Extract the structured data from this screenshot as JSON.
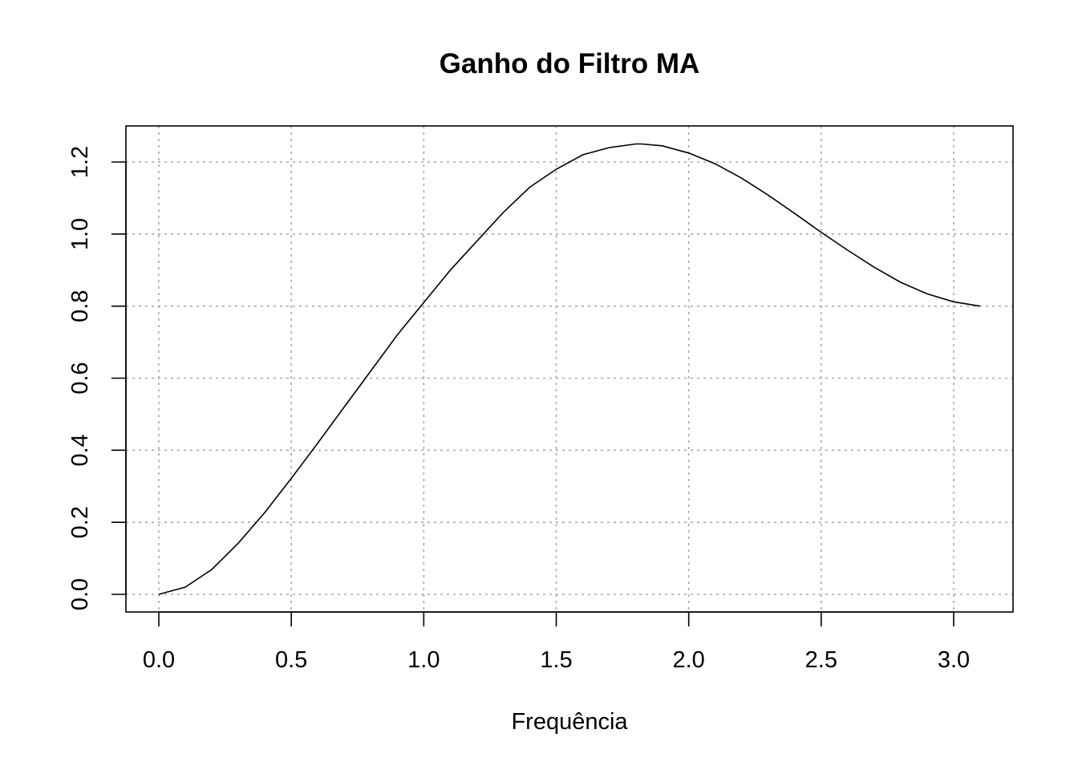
{
  "chart_data": {
    "type": "line",
    "title": "Ganho do Filtro MA",
    "xlabel": "Frequência",
    "ylabel": "",
    "xlim": [
      0.0,
      3.1
    ],
    "ylim": [
      0.0,
      1.25
    ],
    "x_ticks": [
      0.0,
      0.5,
      1.0,
      1.5,
      2.0,
      2.5,
      3.0
    ],
    "x_tick_labels": [
      "0.0",
      "0.5",
      "1.0",
      "1.5",
      "2.0",
      "2.5",
      "3.0"
    ],
    "y_ticks": [
      0.0,
      0.2,
      0.4,
      0.6,
      0.8,
      1.0,
      1.2
    ],
    "y_tick_labels": [
      "0.0",
      "0.2",
      "0.4",
      "0.6",
      "0.8",
      "1.0",
      "1.2"
    ],
    "grid": true,
    "line_color": "#000000",
    "grid_color": "#a9a9a9",
    "series": [
      {
        "x": [
          0.0,
          0.1,
          0.2,
          0.3,
          0.4,
          0.5,
          0.6,
          0.7,
          0.8,
          0.9,
          1.0,
          1.1,
          1.2,
          1.3,
          1.4,
          1.5,
          1.6,
          1.7,
          1.8,
          1.823,
          1.9,
          2.0,
          2.1,
          2.2,
          2.3,
          2.4,
          2.5,
          2.6,
          2.7,
          2.8,
          2.9,
          3.0,
          3.1
        ],
        "y": [
          0.0,
          0.02,
          0.069,
          0.142,
          0.227,
          0.322,
          0.42,
          0.52,
          0.62,
          0.72,
          0.81,
          0.9,
          0.98,
          1.06,
          1.13,
          1.18,
          1.22,
          1.24,
          1.25,
          1.25,
          1.245,
          1.225,
          1.195,
          1.155,
          1.108,
          1.057,
          1.005,
          0.955,
          0.908,
          0.866,
          0.834,
          0.812,
          0.8
        ]
      }
    ]
  }
}
